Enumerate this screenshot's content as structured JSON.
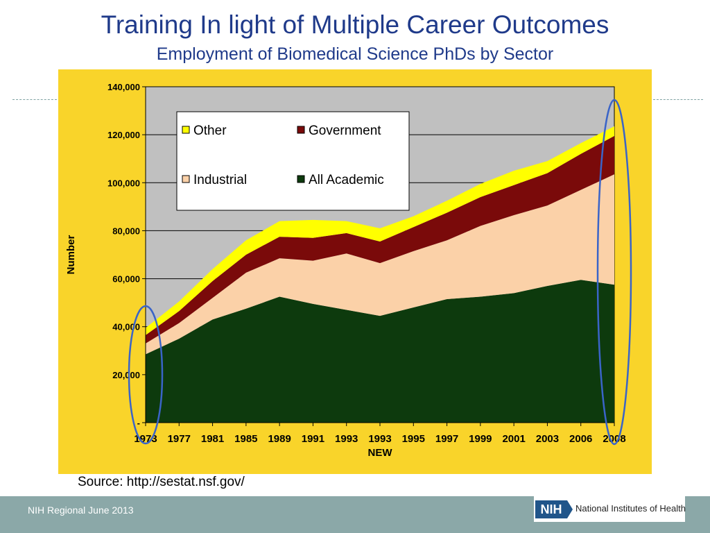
{
  "slide": {
    "title": "Training In light of Multiple Career Outcomes",
    "subtitle": "Employment of Biomedical Science PhDs by Sector",
    "source": "Source: http://sestat.nsf.gov/",
    "footer_left": "NIH Regional June 2013",
    "logo_mark": "NIH",
    "logo_name": "National Institutes of Health"
  },
  "colors": {
    "panel": "#f9d42a",
    "plot_bg": "#c0c0c0",
    "academic": "#0d3a0d",
    "industrial": "#fbd1a8",
    "government": "#7a0a0a",
    "other": "#ffff00",
    "highlight_ellipse": "#3a64c8"
  },
  "chart_data": {
    "type": "area",
    "stacked": true,
    "title": "",
    "xlabel": "NEW",
    "ylabel": "Number",
    "ylim": [
      0,
      140000
    ],
    "yticks": [
      "-",
      "20,000",
      "40,000",
      "60,000",
      "80,000",
      "100,000",
      "120,000",
      "140,000"
    ],
    "categories": [
      "1973",
      "1977",
      "1981",
      "1985",
      "1989",
      "1991",
      "1993",
      "1993",
      "1995",
      "1997",
      "1999",
      "2001",
      "2003",
      "2006",
      "2008"
    ],
    "series": [
      {
        "name": "All Academic",
        "values": [
          28500,
          35000,
          43000,
          47500,
          52500,
          49500,
          47000,
          44500,
          48000,
          51500,
          52500,
          54000,
          57000,
          59500,
          57500
        ]
      },
      {
        "name": "Industrial",
        "values": [
          4500,
          6500,
          9000,
          15000,
          16000,
          18000,
          23500,
          22000,
          23500,
          24500,
          29500,
          32500,
          33500,
          37500,
          46000
        ]
      },
      {
        "name": "Government",
        "values": [
          3500,
          5000,
          7000,
          7500,
          9000,
          9500,
          8500,
          9000,
          10000,
          11500,
          12000,
          12500,
          13500,
          15000,
          16000
        ]
      },
      {
        "name": "Other",
        "values": [
          3000,
          4000,
          5000,
          6000,
          6500,
          7500,
          5000,
          5500,
          4500,
          5000,
          5500,
          6000,
          5000,
          4500,
          4000
        ]
      }
    ],
    "legend": {
      "placement": "top-left",
      "order": [
        "Other",
        "Government",
        "Industrial",
        "All Academic"
      ]
    },
    "annotations": [
      {
        "type": "ellipse",
        "around_category_index": 0
      },
      {
        "type": "ellipse",
        "around_category_index": 14
      }
    ]
  }
}
